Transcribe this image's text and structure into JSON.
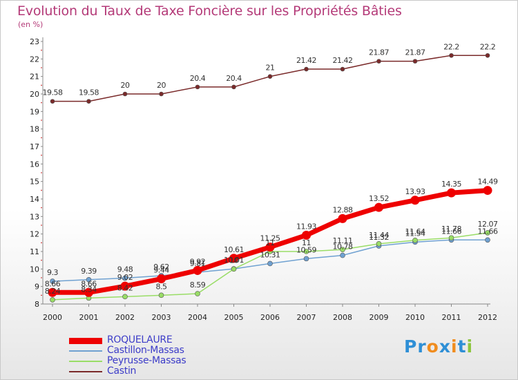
{
  "title": "Evolution du Taux de Taxe Foncière sur les Propriétés Bâties",
  "unit_label": "(en %)",
  "logo": {
    "letters": [
      "P",
      "r",
      "o",
      "x",
      "i",
      "t",
      "i"
    ],
    "colors": [
      "#2e8fd6",
      "#2e8fd6",
      "#f08c1e",
      "#2e8fd6",
      "#f08c1e",
      "#2e8fd6",
      "#8dc63f"
    ]
  },
  "chart_data": {
    "type": "line",
    "title": "Evolution du Taux de Taxe Foncière sur les Propriétés Bâties",
    "ylabel": "(en %)",
    "xlabel": "",
    "ylim": [
      8,
      23
    ],
    "yticks": [
      "8",
      "9",
      "10",
      "11",
      "12",
      "13",
      "14",
      "15",
      "16",
      "17",
      "18",
      "19",
      "20",
      "21",
      "22",
      "23"
    ],
    "x": [
      "2000",
      "2001",
      "2002",
      "2003",
      "2004",
      "2005",
      "2006",
      "2007",
      "2008",
      "2009",
      "2010",
      "2011",
      "2012"
    ],
    "series": [
      {
        "name": "ROQUELAURE",
        "color": "#ee0000",
        "values": [
          8.66,
          8.66,
          9.02,
          9.44,
          9.92,
          10.61,
          11.25,
          11.93,
          12.88,
          13.52,
          13.93,
          14.35,
          14.49
        ],
        "labels": [
          "8.66",
          "8.66",
          "9.02",
          "9.44",
          "9.92",
          "10.61",
          "11.25",
          "11.93",
          "12.88",
          "13.52",
          "13.93",
          "14.35",
          "14.49"
        ]
      },
      {
        "name": "Castillon-Massas",
        "color": "#6fa1d1",
        "values": [
          9.3,
          9.39,
          9.48,
          9.62,
          9.81,
          10.01,
          10.31,
          10.59,
          10.78,
          11.32,
          11.54,
          11.66,
          11.66
        ],
        "labels": [
          "9.3",
          "9.39",
          "9.48",
          "9.62",
          "9.81",
          "10.01",
          "10.31",
          "10.59",
          "10.78",
          "11.32",
          "11.54",
          "11.66",
          "11.66"
        ]
      },
      {
        "name": "Peyrusse-Massas",
        "color": "#99dd66",
        "values": [
          8.24,
          8.34,
          8.42,
          8.5,
          8.59,
          10.0,
          11.0,
          11.0,
          11.11,
          11.44,
          11.64,
          11.78,
          12.07
        ],
        "labels": [
          "8.24",
          "8.34",
          "8.42",
          "8.5",
          "8.59",
          "10",
          "11",
          "11",
          "11.11",
          "11.44",
          "11.64",
          "11.78",
          "12.07"
        ]
      },
      {
        "name": "Castin",
        "color": "#7a2a2a",
        "values": [
          19.58,
          19.58,
          20.0,
          20.0,
          20.4,
          20.4,
          21.0,
          21.42,
          21.42,
          21.87,
          21.87,
          22.2,
          22.2
        ],
        "labels": [
          "19.58",
          "19.58",
          "20",
          "20",
          "20.4",
          "20.4",
          "21",
          "21.42",
          "21.42",
          "21.87",
          "21.87",
          "22.2",
          "22.2"
        ]
      }
    ],
    "legend_position": "bottom-left",
    "grid": false
  }
}
